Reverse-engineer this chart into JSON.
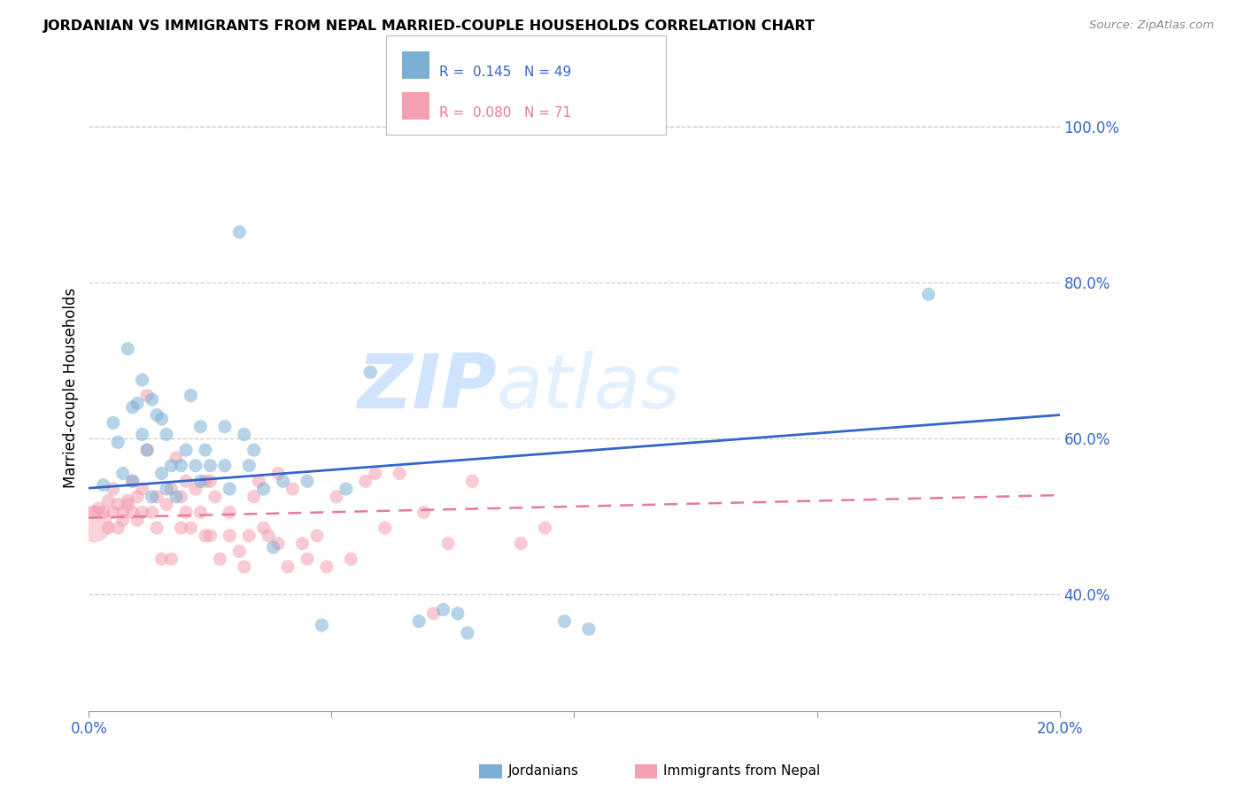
{
  "title": "JORDANIAN VS IMMIGRANTS FROM NEPAL MARRIED-COUPLE HOUSEHOLDS CORRELATION CHART",
  "source": "Source: ZipAtlas.com",
  "ylabel": "Married-couple Households",
  "xlim": [
    0.0,
    0.2
  ],
  "ylim": [
    0.25,
    1.08
  ],
  "yticks": [
    0.4,
    0.6,
    0.8,
    1.0
  ],
  "ytick_labels": [
    "40.0%",
    "60.0%",
    "80.0%",
    "100.0%"
  ],
  "xticks": [
    0.0,
    0.05,
    0.1,
    0.15,
    0.2
  ],
  "xtick_labels": [
    "0.0%",
    "",
    "",
    "",
    "20.0%"
  ],
  "watermark_zip": "ZIP",
  "watermark_atlas": "atlas",
  "blue_color": "#7BAFD4",
  "pink_color": "#F4A0B0",
  "blue_line_color": "#3366CC",
  "pink_line_color": "#E8799A",
  "blue_scatter": [
    [
      0.003,
      0.54
    ],
    [
      0.005,
      0.62
    ],
    [
      0.006,
      0.595
    ],
    [
      0.007,
      0.555
    ],
    [
      0.008,
      0.715
    ],
    [
      0.009,
      0.64
    ],
    [
      0.009,
      0.545
    ],
    [
      0.01,
      0.645
    ],
    [
      0.011,
      0.605
    ],
    [
      0.011,
      0.675
    ],
    [
      0.012,
      0.585
    ],
    [
      0.013,
      0.65
    ],
    [
      0.013,
      0.525
    ],
    [
      0.014,
      0.63
    ],
    [
      0.015,
      0.625
    ],
    [
      0.015,
      0.555
    ],
    [
      0.016,
      0.605
    ],
    [
      0.016,
      0.535
    ],
    [
      0.017,
      0.565
    ],
    [
      0.018,
      0.525
    ],
    [
      0.019,
      0.565
    ],
    [
      0.02,
      0.585
    ],
    [
      0.021,
      0.655
    ],
    [
      0.022,
      0.565
    ],
    [
      0.023,
      0.545
    ],
    [
      0.023,
      0.615
    ],
    [
      0.024,
      0.585
    ],
    [
      0.025,
      0.565
    ],
    [
      0.028,
      0.615
    ],
    [
      0.028,
      0.565
    ],
    [
      0.029,
      0.535
    ],
    [
      0.031,
      0.865
    ],
    [
      0.032,
      0.605
    ],
    [
      0.033,
      0.565
    ],
    [
      0.034,
      0.585
    ],
    [
      0.036,
      0.535
    ],
    [
      0.038,
      0.46
    ],
    [
      0.04,
      0.545
    ],
    [
      0.045,
      0.545
    ],
    [
      0.048,
      0.36
    ],
    [
      0.053,
      0.535
    ],
    [
      0.058,
      0.685
    ],
    [
      0.068,
      0.365
    ],
    [
      0.073,
      0.38
    ],
    [
      0.076,
      0.375
    ],
    [
      0.078,
      0.35
    ],
    [
      0.098,
      0.365
    ],
    [
      0.103,
      0.355
    ],
    [
      0.173,
      0.785
    ]
  ],
  "pink_scatter": [
    [
      0.001,
      0.505
    ],
    [
      0.002,
      0.51
    ],
    [
      0.003,
      0.505
    ],
    [
      0.004,
      0.485
    ],
    [
      0.004,
      0.52
    ],
    [
      0.005,
      0.505
    ],
    [
      0.005,
      0.535
    ],
    [
      0.006,
      0.485
    ],
    [
      0.006,
      0.515
    ],
    [
      0.007,
      0.505
    ],
    [
      0.007,
      0.495
    ],
    [
      0.008,
      0.52
    ],
    [
      0.008,
      0.515
    ],
    [
      0.009,
      0.505
    ],
    [
      0.009,
      0.545
    ],
    [
      0.01,
      0.495
    ],
    [
      0.01,
      0.525
    ],
    [
      0.011,
      0.505
    ],
    [
      0.011,
      0.535
    ],
    [
      0.012,
      0.655
    ],
    [
      0.012,
      0.585
    ],
    [
      0.013,
      0.505
    ],
    [
      0.014,
      0.485
    ],
    [
      0.014,
      0.525
    ],
    [
      0.015,
      0.445
    ],
    [
      0.016,
      0.515
    ],
    [
      0.017,
      0.445
    ],
    [
      0.017,
      0.535
    ],
    [
      0.018,
      0.575
    ],
    [
      0.019,
      0.485
    ],
    [
      0.019,
      0.525
    ],
    [
      0.02,
      0.545
    ],
    [
      0.02,
      0.505
    ],
    [
      0.021,
      0.485
    ],
    [
      0.022,
      0.535
    ],
    [
      0.023,
      0.505
    ],
    [
      0.024,
      0.545
    ],
    [
      0.024,
      0.475
    ],
    [
      0.025,
      0.545
    ],
    [
      0.025,
      0.475
    ],
    [
      0.026,
      0.525
    ],
    [
      0.027,
      0.445
    ],
    [
      0.029,
      0.475
    ],
    [
      0.029,
      0.505
    ],
    [
      0.031,
      0.455
    ],
    [
      0.032,
      0.435
    ],
    [
      0.033,
      0.475
    ],
    [
      0.034,
      0.525
    ],
    [
      0.035,
      0.545
    ],
    [
      0.036,
      0.485
    ],
    [
      0.037,
      0.475
    ],
    [
      0.039,
      0.555
    ],
    [
      0.039,
      0.465
    ],
    [
      0.041,
      0.435
    ],
    [
      0.042,
      0.535
    ],
    [
      0.044,
      0.465
    ],
    [
      0.045,
      0.445
    ],
    [
      0.047,
      0.475
    ],
    [
      0.049,
      0.435
    ],
    [
      0.051,
      0.525
    ],
    [
      0.054,
      0.445
    ],
    [
      0.057,
      0.545
    ],
    [
      0.059,
      0.555
    ],
    [
      0.061,
      0.485
    ],
    [
      0.064,
      0.555
    ],
    [
      0.069,
      0.505
    ],
    [
      0.071,
      0.375
    ],
    [
      0.074,
      0.465
    ],
    [
      0.079,
      0.545
    ],
    [
      0.089,
      0.465
    ],
    [
      0.094,
      0.485
    ]
  ],
  "blue_trendline": [
    [
      0.0,
      0.536
    ],
    [
      0.2,
      0.63
    ]
  ],
  "pink_trendline": [
    [
      0.0,
      0.498
    ],
    [
      0.2,
      0.527
    ]
  ]
}
